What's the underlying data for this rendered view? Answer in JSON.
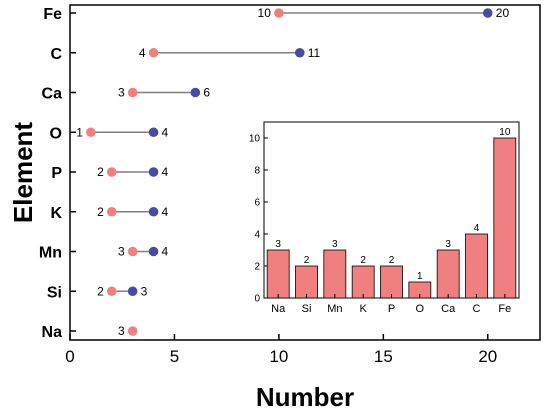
{
  "chart_data": [
    {
      "type": "dumbbell",
      "xlabel": "Number",
      "ylabel": "Element",
      "xlim": [
        0,
        22.5
      ],
      "xticks": [
        0,
        5,
        10,
        15,
        20
      ],
      "categories": [
        "Fe",
        "C",
        "Ca",
        "O",
        "P",
        "K",
        "Mn",
        "Si",
        "Na"
      ],
      "series": [
        {
          "values": [
            10,
            4,
            3,
            1,
            2,
            2,
            3,
            2,
            3
          ],
          "color": "#f08080"
        },
        {
          "values": [
            20,
            11,
            6,
            4,
            4,
            4,
            4,
            3,
            null
          ],
          "color": "#4a4aa6"
        }
      ],
      "value_labels": {
        "start": [
          "10",
          "4",
          "3",
          "1",
          "2",
          "2",
          "3",
          "2",
          "3"
        ],
        "end": [
          "20",
          "11",
          "6",
          "4",
          "4",
          "4",
          "4",
          "3",
          ""
        ]
      },
      "line_color": "#808080",
      "grid": false
    },
    {
      "type": "bar",
      "inset": true,
      "categories": [
        "Na",
        "Si",
        "Mn",
        "K",
        "P",
        "O",
        "Ca",
        "C",
        "Fe"
      ],
      "values": [
        3,
        2,
        3,
        2,
        2,
        1,
        3,
        4,
        10
      ],
      "value_labels": [
        "3",
        "2",
        "3",
        "2",
        "2",
        "1",
        "3",
        "4",
        "10"
      ],
      "ylim": [
        0,
        11
      ],
      "yticks": [
        "0",
        "2",
        "4",
        "6",
        "8",
        "10"
      ],
      "bar_color": "#f08080",
      "grid": false
    }
  ]
}
